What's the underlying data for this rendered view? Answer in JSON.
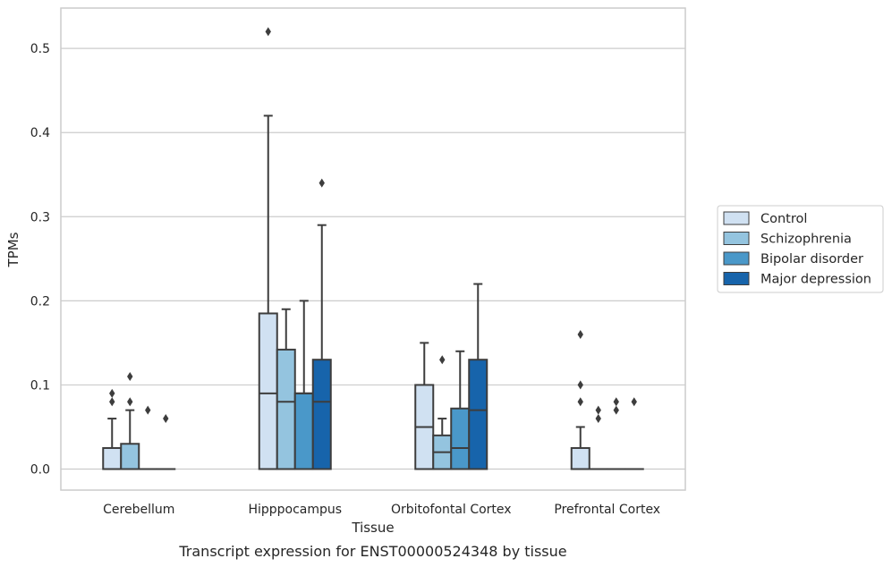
{
  "caption": "Transcript expression for ENST00000524348 by tissue",
  "chart_data": {
    "type": "boxplot",
    "title": "",
    "xlabel": "Tissue",
    "ylabel": "TPMs",
    "ylim": [
      -0.025,
      0.548
    ],
    "yticks": [
      0.0,
      0.1,
      0.2,
      0.3,
      0.4,
      0.5
    ],
    "ytick_labels": [
      "0.0",
      "0.1",
      "0.2",
      "0.3",
      "0.4",
      "0.5"
    ],
    "grid": "horizontal",
    "legend_position": "right",
    "categories": [
      "Cerebellum",
      "Hipppocampus",
      "Orbitofontal Cortex",
      "Prefrontal Cortex"
    ],
    "series": [
      {
        "name": "Control",
        "color": "#d0e1f2",
        "boxes": [
          {
            "q1": 0.0,
            "median": 0.0,
            "q3": 0.025,
            "whisker_low": 0.0,
            "whisker_high": 0.06,
            "outliers": [
              0.08,
              0.09
            ]
          },
          {
            "q1": 0.0,
            "median": 0.09,
            "q3": 0.185,
            "whisker_low": 0.0,
            "whisker_high": 0.42,
            "outliers": [
              0.52
            ]
          },
          {
            "q1": 0.0,
            "median": 0.05,
            "q3": 0.1,
            "whisker_low": 0.0,
            "whisker_high": 0.15,
            "outliers": []
          },
          {
            "q1": 0.0,
            "median": 0.0,
            "q3": 0.025,
            "whisker_low": 0.0,
            "whisker_high": 0.05,
            "outliers": [
              0.08,
              0.1,
              0.16
            ]
          }
        ]
      },
      {
        "name": "Schizophrenia",
        "color": "#94c4df",
        "boxes": [
          {
            "q1": 0.0,
            "median": 0.0,
            "q3": 0.03,
            "whisker_low": 0.0,
            "whisker_high": 0.07,
            "outliers": [
              0.08,
              0.11
            ]
          },
          {
            "q1": 0.0,
            "median": 0.08,
            "q3": 0.142,
            "whisker_low": 0.0,
            "whisker_high": 0.19,
            "outliers": []
          },
          {
            "q1": 0.0,
            "median": 0.02,
            "q3": 0.04,
            "whisker_low": 0.0,
            "whisker_high": 0.06,
            "outliers": [
              0.13
            ]
          },
          {
            "q1": 0.0,
            "median": 0.0,
            "q3": 0.0,
            "whisker_low": 0.0,
            "whisker_high": 0.0,
            "outliers": [
              0.06,
              0.07
            ]
          }
        ]
      },
      {
        "name": "Bipolar disorder",
        "color": "#4a98c9",
        "boxes": [
          {
            "q1": 0.0,
            "median": 0.0,
            "q3": 0.0,
            "whisker_low": 0.0,
            "whisker_high": 0.0,
            "outliers": [
              0.07
            ]
          },
          {
            "q1": 0.0,
            "median": 0.09,
            "q3": 0.09,
            "whisker_low": 0.0,
            "whisker_high": 0.2,
            "outliers": []
          },
          {
            "q1": 0.0,
            "median": 0.025,
            "q3": 0.072,
            "whisker_low": 0.0,
            "whisker_high": 0.14,
            "outliers": []
          },
          {
            "q1": 0.0,
            "median": 0.0,
            "q3": 0.0,
            "whisker_low": 0.0,
            "whisker_high": 0.0,
            "outliers": [
              0.07,
              0.08
            ]
          }
        ]
      },
      {
        "name": "Major depression",
        "color": "#1764ab",
        "boxes": [
          {
            "q1": 0.0,
            "median": 0.0,
            "q3": 0.0,
            "whisker_low": 0.0,
            "whisker_high": 0.0,
            "outliers": [
              0.06
            ]
          },
          {
            "q1": 0.0,
            "median": 0.08,
            "q3": 0.13,
            "whisker_low": 0.0,
            "whisker_high": 0.29,
            "outliers": [
              0.34
            ]
          },
          {
            "q1": 0.0,
            "median": 0.07,
            "q3": 0.13,
            "whisker_low": 0.0,
            "whisker_high": 0.22,
            "outliers": []
          },
          {
            "q1": 0.0,
            "median": 0.0,
            "q3": 0.0,
            "whisker_low": 0.0,
            "whisker_high": 0.0,
            "outliers": [
              0.08
            ]
          }
        ]
      }
    ]
  }
}
